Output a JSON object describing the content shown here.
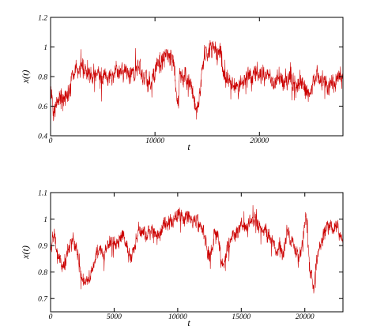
{
  "chart_data": [
    {
      "type": "line",
      "xlabel": "t",
      "ylabel": "x(t)",
      "xlim": [
        0,
        28000
      ],
      "ylim": [
        0.4,
        1.2
      ],
      "x_ticks": [
        0,
        10000,
        20000
      ],
      "y_ticks": [
        0.4,
        0.6,
        0.8,
        1.0,
        1.2
      ],
      "x_tick_labels": [
        "0",
        "10000",
        "20000"
      ],
      "y_tick_labels": [
        "0.4",
        "0.6",
        "0.8",
        "1",
        "1.2"
      ],
      "grid": false,
      "legend": "none",
      "series": [
        {
          "color": "#cc0000",
          "noise_amplitude": 0.07,
          "x": [
            0,
            300,
            600,
            1000,
            1500,
            1900,
            2100,
            2400,
            3000,
            3500,
            4000,
            4500,
            5000,
            5500,
            6000,
            6500,
            7000,
            7500,
            8000,
            8500,
            9000,
            9500,
            10000,
            10300,
            10600,
            11000,
            11500,
            11800,
            12000,
            12200,
            12400,
            12800,
            13200,
            13600,
            13900,
            14200,
            14500,
            14900,
            15200,
            15600,
            16000,
            16300,
            16600,
            16800,
            17000,
            17500,
            18000,
            18500,
            19000,
            19500,
            20000,
            20500,
            21000,
            21500,
            22000,
            22500,
            23000,
            23500,
            24000,
            24500,
            25000,
            25500,
            26000,
            26500,
            27000,
            27600
          ],
          "y": [
            0.72,
            0.55,
            0.62,
            0.68,
            0.66,
            0.7,
            0.82,
            0.86,
            0.85,
            0.82,
            0.8,
            0.84,
            0.8,
            0.78,
            0.82,
            0.85,
            0.84,
            0.8,
            0.83,
            0.86,
            0.8,
            0.76,
            0.82,
            0.9,
            0.88,
            0.95,
            0.92,
            0.9,
            0.7,
            0.62,
            0.84,
            0.8,
            0.76,
            0.72,
            0.58,
            0.6,
            0.88,
            0.96,
            0.98,
            1.0,
            0.96,
            0.98,
            0.8,
            0.75,
            0.78,
            0.76,
            0.74,
            0.78,
            0.8,
            0.82,
            0.84,
            0.8,
            0.78,
            0.77,
            0.8,
            0.76,
            0.78,
            0.74,
            0.76,
            0.7,
            0.72,
            0.8,
            0.78,
            0.74,
            0.76,
            0.8
          ]
        }
      ]
    },
    {
      "type": "line",
      "xlabel": "t",
      "ylabel": "x(t)",
      "xlim": [
        0,
        23000
      ],
      "ylim": [
        0.65,
        1.1
      ],
      "x_ticks": [
        0,
        5000,
        10000,
        15000,
        20000
      ],
      "y_ticks": [
        0.7,
        0.8,
        0.9,
        1.0,
        1.1
      ],
      "x_tick_labels": [
        "0",
        "5000",
        "10000",
        "15000",
        "20000"
      ],
      "y_tick_labels": [
        "0.7",
        "0.8",
        "0.9",
        "1",
        "1.1"
      ],
      "grid": false,
      "legend": "none",
      "series": [
        {
          "color": "#cc0000",
          "noise_amplitude": 0.03,
          "x": [
            0,
            300,
            600,
            900,
            1200,
            1500,
            1800,
            2100,
            2400,
            2700,
            3000,
            3300,
            3600,
            3900,
            4200,
            4500,
            4800,
            5100,
            5400,
            5700,
            6000,
            6300,
            6600,
            6900,
            7200,
            7500,
            7800,
            8100,
            8400,
            8700,
            9000,
            9300,
            9600,
            9900,
            10200,
            10500,
            10800,
            11100,
            11400,
            11700,
            12000,
            12300,
            12600,
            12900,
            13200,
            13500,
            13800,
            14100,
            14400,
            14700,
            15000,
            15300,
            15600,
            15900,
            16200,
            16500,
            16800,
            17100,
            17400,
            17700,
            18000,
            18300,
            18600,
            18900,
            19200,
            19500,
            19800,
            20100,
            20400,
            20700,
            21000,
            21300,
            21600,
            21900,
            22200,
            22500,
            22800,
            23000
          ],
          "y": [
            0.9,
            0.94,
            0.86,
            0.82,
            0.84,
            0.9,
            0.92,
            0.88,
            0.78,
            0.76,
            0.77,
            0.8,
            0.86,
            0.88,
            0.86,
            0.9,
            0.92,
            0.9,
            0.93,
            0.94,
            0.9,
            0.86,
            0.9,
            0.96,
            0.95,
            0.94,
            0.96,
            0.95,
            0.93,
            0.96,
            0.99,
            0.98,
            1.0,
            1.01,
            1.02,
            1.0,
            1.01,
            0.99,
            1.0,
            0.97,
            0.96,
            0.88,
            0.86,
            0.96,
            0.93,
            0.82,
            0.86,
            0.92,
            0.94,
            0.96,
            0.98,
            0.97,
            0.99,
            1.0,
            0.99,
            0.97,
            0.96,
            0.94,
            0.92,
            0.88,
            0.9,
            0.86,
            0.96,
            0.92,
            0.88,
            0.85,
            0.9,
            1.02,
            0.8,
            0.74,
            0.88,
            0.92,
            0.95,
            0.97,
            0.96,
            0.98,
            0.94,
            0.92
          ]
        }
      ]
    }
  ]
}
